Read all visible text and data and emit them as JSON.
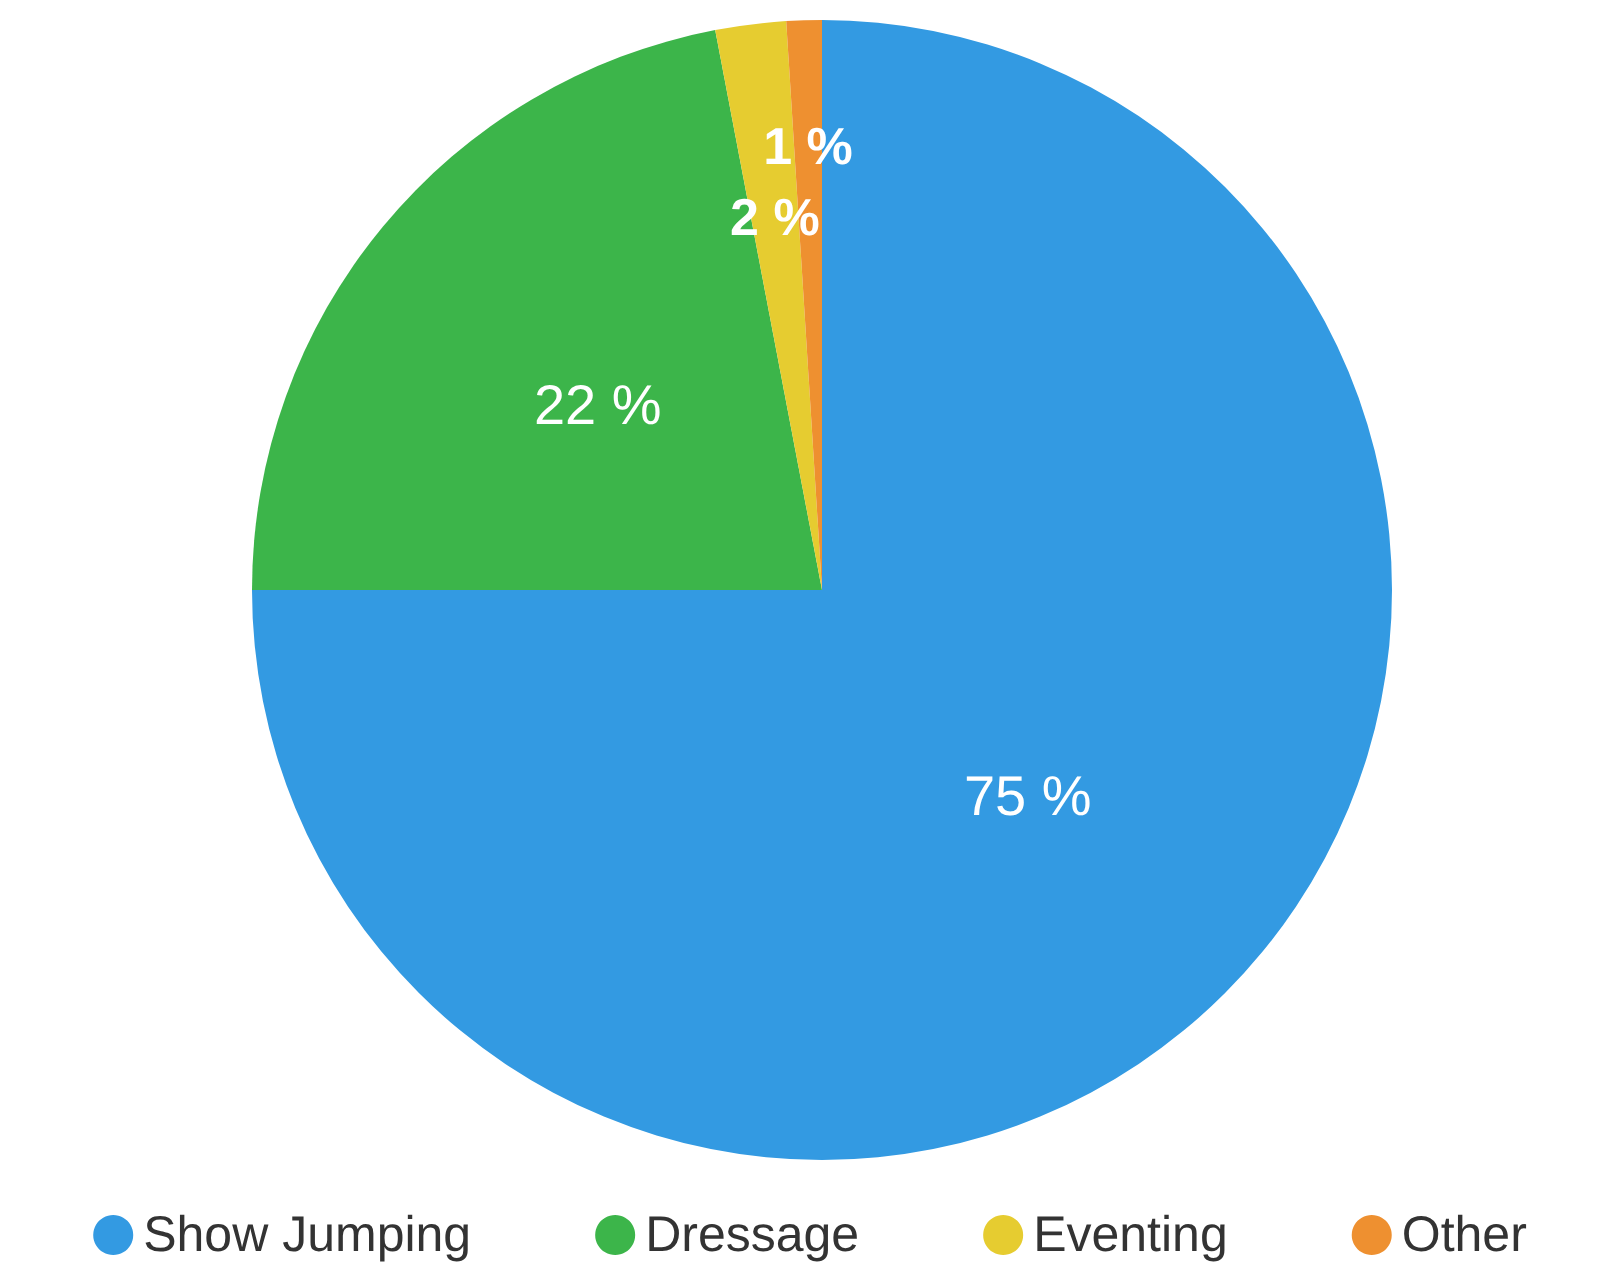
{
  "chart_data": {
    "type": "pie",
    "categories": [
      "Show Jumping",
      "Dressage",
      "Eventing",
      "Other"
    ],
    "values": [
      75,
      22,
      2,
      1
    ],
    "colors": [
      "#339ae2",
      "#3cb54a",
      "#e6cc30",
      "#ee9030"
    ],
    "value_labels": [
      "75 %",
      "22 %",
      "2 %",
      "1 %"
    ],
    "legend": "bottom"
  }
}
